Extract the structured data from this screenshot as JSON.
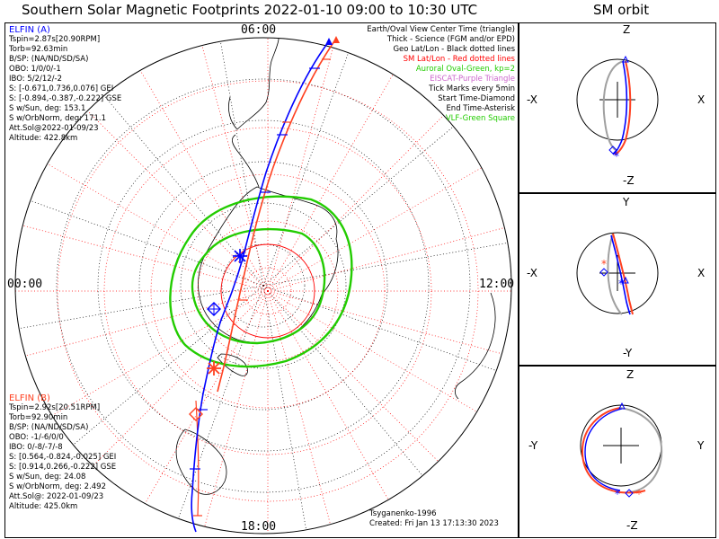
{
  "title": "Southern Solar Magnetic Footprints 2022-01-10 09:00 to 10:30 UTC",
  "orbit_title": "SM orbit",
  "colors": {
    "elfin_a": "#0000ff",
    "elfin_b": "#ff4020",
    "sm_grid": "#ff0000",
    "geo_grid": "#000000",
    "auroral_oval": "#22cc00",
    "eiscat": "#cc66cc",
    "vlf": "#22cc00",
    "orbit_other": "#a0a0a0"
  },
  "elfin_a": {
    "name": "ELFIN (A)",
    "lines": [
      "Tspin=2.87s[20.90RPM]",
      "Torb=92.63min",
      "B/SP: (NA/ND/SD/SA)",
      "OBO: 1/0/0/-1",
      "IBO: 5/2/12/-2",
      "S: [-0.671,0.736,0.076] GEI",
      "S: [-0.894,-0.387,-0.222] GSE",
      "S w/Sun, deg: 153.1",
      "S w/OrbNorm, deg: 171.1",
      "Att.Sol@2022-01-09/23",
      "Altitude: 422.8km"
    ]
  },
  "elfin_b": {
    "name": "ELFIN (B)",
    "lines": [
      "Tspin=2.92s[20.51RPM]",
      "Torb=92.90min",
      "B/SP: (NA/ND/SD/SA)",
      "OBO: -1/-6/0/0",
      "IBO: 0/-8/-7/-8",
      "S: [0.564,-0.824,-0.025] GEI",
      "S: [0.914,0.266,-0.222] GSE",
      "S w/Sun, deg: 24.08",
      "S w/OrbNorm, deg: 2.492",
      "Att.Sol@: 2022-01-09/23",
      "Altitude: 425.0km"
    ]
  },
  "legend": [
    {
      "text": "Earth/Oval View Center Time (triangle)",
      "color": "#000000"
    },
    {
      "text": "Thick - Science (FGM and/or EPD)",
      "color": "#000000"
    },
    {
      "text": "Geo Lat/Lon - Black dotted lines",
      "color": "#000000"
    },
    {
      "text": "SM Lat/Lon - Red dotted lines",
      "color": "#ff0000"
    },
    {
      "text": "Auroral Oval-Green, kp=2",
      "color": "#22cc00"
    },
    {
      "text": "EISCAT-Purple Triangle",
      "color": "#cc66cc"
    },
    {
      "text": "Tick Marks every 5min",
      "color": "#000000"
    },
    {
      "text": "Start Time-Diamond",
      "color": "#000000"
    },
    {
      "text": "End Time-Asterisk",
      "color": "#000000"
    },
    {
      "text": "VLF-Green Square",
      "color": "#22cc00"
    }
  ],
  "credits": [
    "Tsyganenko-1996",
    "Created: Fri Jan 13 17:13:30 2023"
  ],
  "hour_labels": {
    "top": "06:00",
    "left": "00:00",
    "right": "12:00",
    "bottom": "18:00"
  },
  "orbit_panels": [
    {
      "up": "Z",
      "down": "-Z",
      "left": "-X",
      "right": "X"
    },
    {
      "up": "Y",
      "down": "-Y",
      "left": "-X",
      "right": "X"
    },
    {
      "up": "Z",
      "down": "-Z",
      "left": "-Y",
      "right": "Y"
    }
  ],
  "chart_data": {
    "type": "line",
    "projection": "south polar, magnetic local time on perimeter",
    "axis_labels": [
      "06:00 (top)",
      "00:00 (left)",
      "12:00 (right)",
      "18:00 (bottom)"
    ],
    "grid": true,
    "series": [
      {
        "name": "ELFIN (A)",
        "color": "#0000ff",
        "start_marker": "diamond",
        "end_marker": "asterisk"
      },
      {
        "name": "ELFIN (B)",
        "color": "#ff4020",
        "start_marker": "diamond",
        "end_marker": "asterisk"
      }
    ]
  }
}
